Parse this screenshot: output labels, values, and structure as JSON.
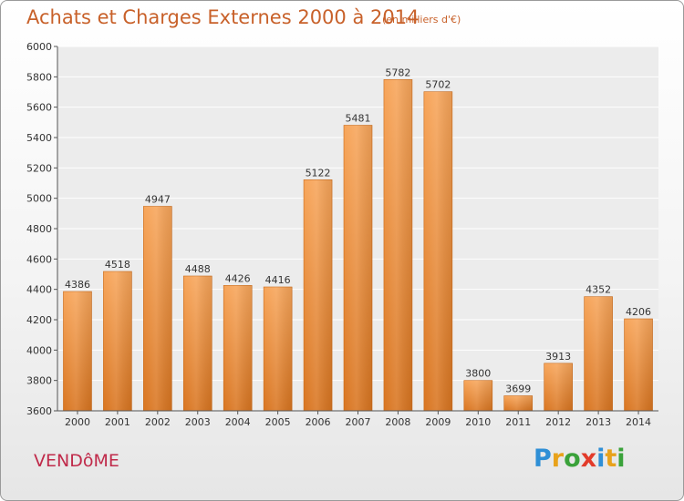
{
  "title": "Achats et Charges Externes 2000 à 2014",
  "subtitle": "(en milliers d'€)",
  "location": "VENDôME",
  "brand": {
    "text": "Proxiti",
    "letters": [
      "P",
      "r",
      "o",
      "x",
      "i",
      "t",
      "i"
    ],
    "colors": [
      "#2f8fd6",
      "#e8a21b",
      "#3aa23a",
      "#e23b2a",
      "#2f8fd6",
      "#e8a21b",
      "#3aa23a"
    ]
  },
  "colors": {
    "bar_light": "#f7a55a",
    "bar_dark": "#d97520",
    "title": "#c8612a",
    "location": "#c02a4a"
  },
  "chart_data": {
    "type": "bar",
    "title": "Achats et Charges Externes 2000 à 2014",
    "subtitle": "(en milliers d'€)",
    "categories": [
      "2000",
      "2001",
      "2002",
      "2003",
      "2004",
      "2005",
      "2006",
      "2007",
      "2008",
      "2009",
      "2010",
      "2011",
      "2012",
      "2013",
      "2014"
    ],
    "values": [
      4386,
      4518,
      4947,
      4488,
      4426,
      4416,
      5122,
      5481,
      5782,
      5702,
      3800,
      3699,
      3913,
      4352,
      4206
    ],
    "ylim": [
      3600,
      6000
    ],
    "yticks": [
      3600,
      3800,
      4000,
      4200,
      4400,
      4600,
      4800,
      5000,
      5200,
      5400,
      5600,
      5800,
      6000
    ],
    "grid": true,
    "xlabel": "",
    "ylabel": ""
  }
}
